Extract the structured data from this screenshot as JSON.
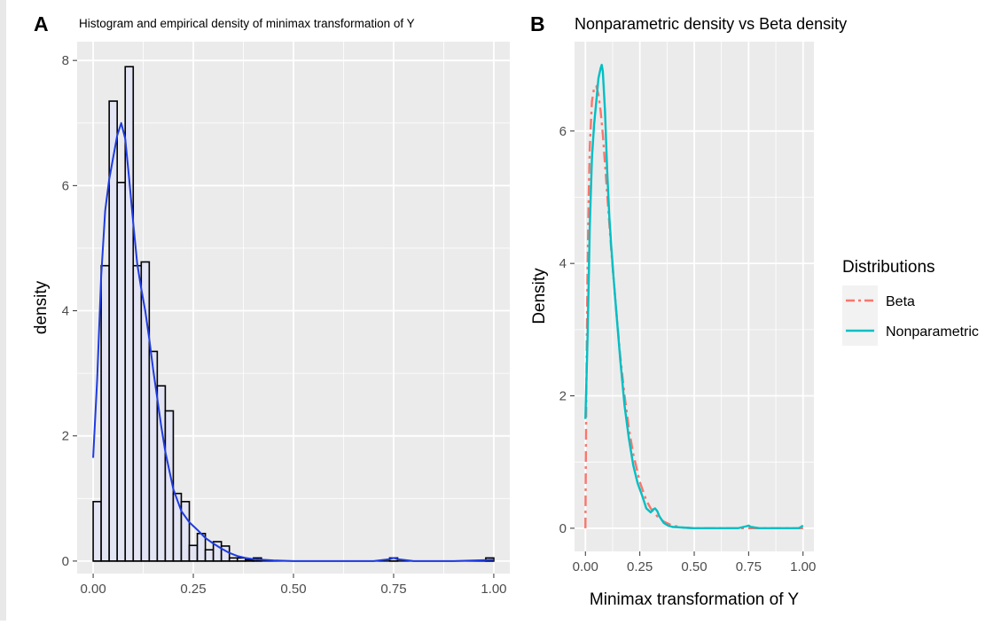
{
  "chart_data": [
    {
      "panel": "A",
      "type": "bar",
      "title": "Histogram and empirical density of minimax transformation of Y",
      "xlabel": "",
      "ylabel": "density",
      "xlim": [
        -0.04,
        1.04
      ],
      "ylim": [
        -0.2,
        8.3
      ],
      "x_ticks": [
        {
          "value": 0,
          "label": "0.00"
        },
        {
          "value": 0.25,
          "label": "0.25"
        },
        {
          "value": 0.5,
          "label": "0.50"
        },
        {
          "value": 0.75,
          "label": "0.75"
        },
        {
          "value": 1,
          "label": "1.00"
        }
      ],
      "y_ticks": [
        {
          "value": 0,
          "label": "0"
        },
        {
          "value": 2,
          "label": "2"
        },
        {
          "value": 4,
          "label": "4"
        },
        {
          "value": 6,
          "label": "6"
        },
        {
          "value": 8,
          "label": "8"
        }
      ],
      "grid": true,
      "bin_width": 0.02,
      "bins_start": [
        0,
        0.02,
        0.04,
        0.06,
        0.08,
        0.1,
        0.12,
        0.14,
        0.16,
        0.18,
        0.2,
        0.22,
        0.24,
        0.26,
        0.28,
        0.3,
        0.32,
        0.34,
        0.36,
        0.38,
        0.4,
        0.42,
        0.44,
        0.46,
        0.48,
        0.5,
        0.52,
        0.54,
        0.56,
        0.58,
        0.6,
        0.62,
        0.64,
        0.66,
        0.68,
        0.7,
        0.72,
        0.74,
        0.76,
        0.78,
        0.8,
        0.82,
        0.84,
        0.86,
        0.88,
        0.9,
        0.92,
        0.94,
        0.96,
        0.98
      ],
      "values": [
        0.95,
        4.72,
        7.35,
        6.05,
        7.9,
        4.72,
        4.78,
        3.35,
        2.8,
        2.4,
        1.08,
        0.95,
        0.25,
        0.44,
        0.18,
        0.31,
        0.24,
        0.05,
        0.05,
        0.02,
        0.05,
        0,
        0,
        0,
        0,
        0,
        0,
        0,
        0,
        0,
        0,
        0,
        0,
        0,
        0,
        0,
        0,
        0.05,
        0,
        0,
        0,
        0,
        0,
        0,
        0,
        0,
        0,
        0,
        0,
        0.05
      ],
      "bar_fill": "#e3e4f4",
      "bar_stroke": "#000000",
      "density_color": "#1f3ce0",
      "density": {
        "x": [
          0,
          0.01,
          0.02,
          0.03,
          0.04,
          0.05,
          0.06,
          0.07,
          0.08,
          0.09,
          0.1,
          0.11,
          0.12,
          0.13,
          0.14,
          0.15,
          0.16,
          0.17,
          0.18,
          0.19,
          0.2,
          0.22,
          0.24,
          0.26,
          0.28,
          0.3,
          0.32,
          0.34,
          0.36,
          0.38,
          0.4,
          0.45,
          0.5,
          0.6,
          0.7,
          0.74,
          0.75,
          0.76,
          0.8,
          0.9,
          1.0
        ],
        "y": [
          1.65,
          2.9,
          4.55,
          5.6,
          6.1,
          6.45,
          6.8,
          7.0,
          6.75,
          6.1,
          5.4,
          4.75,
          4.35,
          4.0,
          3.55,
          3.05,
          2.6,
          2.15,
          1.75,
          1.45,
          1.15,
          0.8,
          0.62,
          0.5,
          0.37,
          0.28,
          0.2,
          0.13,
          0.08,
          0.05,
          0.03,
          0.01,
          0.0,
          0.0,
          0.0,
          0.03,
          0.05,
          0.03,
          0.0,
          0.0,
          0.02
        ]
      }
    },
    {
      "panel": "B",
      "type": "line",
      "title": "Nonparametric density vs Beta density",
      "xlabel": "Minimax transformation of Y",
      "ylabel": "Density",
      "xlim": [
        -0.05,
        1.05
      ],
      "ylim": [
        -0.35,
        7.35
      ],
      "x_ticks": [
        {
          "value": 0,
          "label": "0.00"
        },
        {
          "value": 0.25,
          "label": "0.25"
        },
        {
          "value": 0.5,
          "label": "0.50"
        },
        {
          "value": 0.75,
          "label": "0.75"
        },
        {
          "value": 1,
          "label": "1.00"
        }
      ],
      "y_ticks": [
        {
          "value": 0,
          "label": "0"
        },
        {
          "value": 2,
          "label": "2"
        },
        {
          "value": 4,
          "label": "4"
        },
        {
          "value": 6,
          "label": "6"
        }
      ],
      "grid": true,
      "legend": {
        "title": "Distributions",
        "placement": "right"
      },
      "series": [
        {
          "name": "Beta",
          "color": "#f8766d",
          "dash": "dashdot",
          "x": [
            0,
            0.003,
            0.006,
            0.01,
            0.015,
            0.02,
            0.03,
            0.04,
            0.05,
            0.06,
            0.07,
            0.08,
            0.09,
            0.1,
            0.11,
            0.12,
            0.14,
            0.16,
            0.18,
            0.2,
            0.22,
            0.25,
            0.28,
            0.3,
            0.33,
            0.36,
            0.4,
            0.45,
            0.5,
            0.6,
            0.7,
            0.8,
            0.9,
            1.0
          ],
          "y": [
            0,
            1.5,
            2.8,
            4.0,
            5.0,
            5.75,
            6.45,
            6.65,
            6.68,
            6.55,
            6.3,
            5.95,
            5.5,
            5.05,
            4.6,
            4.15,
            3.35,
            2.6,
            2.0,
            1.5,
            1.12,
            0.7,
            0.42,
            0.3,
            0.18,
            0.1,
            0.04,
            0.01,
            0.0,
            0.0,
            0.0,
            0.0,
            0.0,
            0.0
          ]
        },
        {
          "name": "Nonparametric",
          "color": "#00bfc4",
          "dash": "solid",
          "x": [
            0,
            0.01,
            0.02,
            0.03,
            0.04,
            0.05,
            0.06,
            0.07,
            0.075,
            0.08,
            0.09,
            0.1,
            0.11,
            0.12,
            0.13,
            0.14,
            0.15,
            0.16,
            0.18,
            0.2,
            0.22,
            0.24,
            0.26,
            0.28,
            0.3,
            0.31,
            0.32,
            0.33,
            0.34,
            0.36,
            0.38,
            0.4,
            0.45,
            0.5,
            0.6,
            0.7,
            0.74,
            0.75,
            0.76,
            0.8,
            0.9,
            0.98,
            1.0
          ],
          "y": [
            1.65,
            2.9,
            4.55,
            5.6,
            6.1,
            6.45,
            6.8,
            6.95,
            7.0,
            6.9,
            6.3,
            5.4,
            4.7,
            4.2,
            3.75,
            3.35,
            2.95,
            2.55,
            1.85,
            1.35,
            0.95,
            0.68,
            0.5,
            0.3,
            0.24,
            0.28,
            0.3,
            0.26,
            0.18,
            0.08,
            0.04,
            0.02,
            0.01,
            0.0,
            0.0,
            0.0,
            0.03,
            0.04,
            0.02,
            0.0,
            0.0,
            0.0,
            0.04
          ]
        }
      ]
    }
  ]
}
